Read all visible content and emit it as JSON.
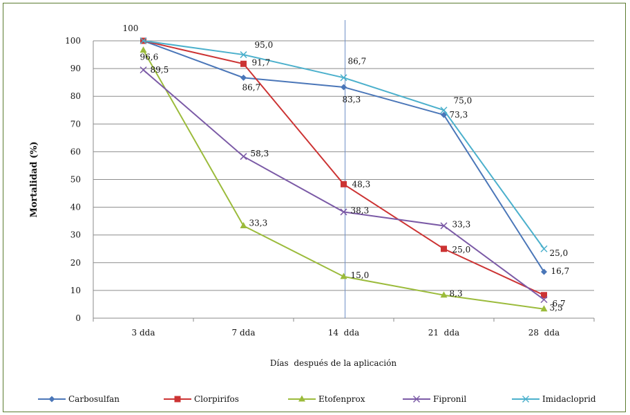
{
  "chart_data": {
    "type": "line",
    "categories": [
      "3 dda",
      "7 dda",
      "14  dda",
      "21  dda",
      "28  dda"
    ],
    "xlabel": "Días  después de la aplicación",
    "ylabel": "Mortalidad  (%)",
    "ylim": [
      0,
      100
    ],
    "yticks": [
      "0",
      "10",
      "20",
      "30",
      "40",
      "50",
      "60",
      "70",
      "80",
      "90",
      "100"
    ],
    "grid": true,
    "legend_position": "bottom",
    "series": [
      {
        "name": "Carbosulfan",
        "color": "#4a76b8",
        "marker": "diamond",
        "values": [
          100,
          86.7,
          83.3,
          73.3,
          16.7
        ],
        "labels": [
          "",
          "86,7",
          "83,3",
          "73,3",
          "16,7"
        ]
      },
      {
        "name": "Clorpirifos",
        "color": "#cc3333",
        "marker": "square",
        "values": [
          100,
          91.7,
          48.3,
          25.0,
          8.3
        ],
        "labels": [
          "100",
          "91,7",
          "48,3",
          "25,0",
          ""
        ]
      },
      {
        "name": "Etofenprox",
        "color": "#9bbb3b",
        "marker": "triangle",
        "values": [
          96.6,
          33.3,
          15.0,
          8.3,
          3.3
        ],
        "labels": [
          "96,6",
          "33,3",
          "15,0",
          "8,3",
          "3,3"
        ]
      },
      {
        "name": "Fipronil",
        "color": "#7b5aa6",
        "marker": "x",
        "values": [
          89.5,
          58.3,
          38.3,
          33.3,
          6.7
        ],
        "labels": [
          "89,5",
          "58,3",
          "38,3",
          "33,3",
          "6,7"
        ]
      },
      {
        "name": "Imidacloprid",
        "color": "#4bb0cc",
        "marker": "x",
        "values": [
          100,
          95.0,
          86.7,
          75.0,
          25.0
        ],
        "labels": [
          "",
          "95,0",
          "86,7",
          "75,0",
          "25,0"
        ]
      }
    ]
  }
}
